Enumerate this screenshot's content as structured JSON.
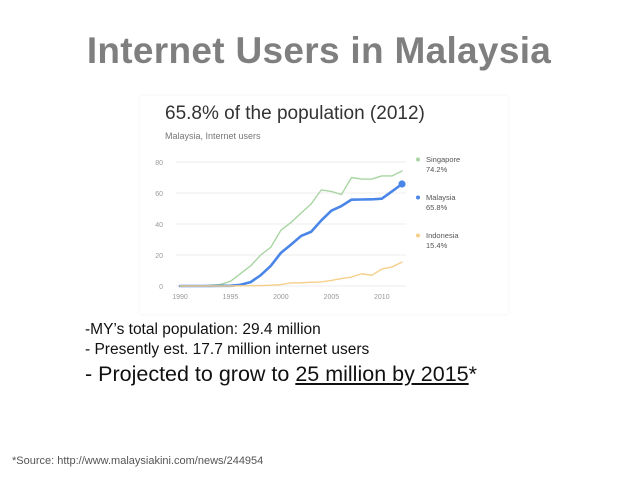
{
  "slide": {
    "title": "Internet Users in Malaysia",
    "bullets": [
      "-MY’s total population: 29.4 million",
      "-  Presently est. 17.7 million internet users"
    ],
    "projection": {
      "prefix": "- Projected to grow to ",
      "highlight": "25 million by 2015",
      "suffix": "*"
    },
    "source": "*Source: http://www.malaysiakini.com/news/244954"
  },
  "chart_data": {
    "type": "line",
    "title": "65.8% of the population (2012)",
    "subtitle": "Malaysia, Internet users",
    "xlim": [
      1990,
      2012
    ],
    "ylim": [
      0,
      80
    ],
    "x_ticks": [
      1990,
      1995,
      2000,
      2005,
      2010
    ],
    "y_ticks": [
      0,
      20,
      40,
      60,
      80
    ],
    "grid": true,
    "legend_position": "right",
    "x": [
      1990,
      1991,
      1992,
      1993,
      1994,
      1995,
      1996,
      1997,
      1998,
      1999,
      2000,
      2001,
      2002,
      2003,
      2004,
      2005,
      2006,
      2007,
      2008,
      2009,
      2010,
      2011,
      2012
    ],
    "series": [
      {
        "name": "Singapore",
        "legend_value": "74.2%",
        "color": "#a8d5a2",
        "values": [
          0,
          0,
          0,
          0.5,
          1,
          3,
          8,
          13,
          20,
          25,
          36,
          41,
          47,
          53,
          62,
          61,
          59,
          70,
          69,
          69,
          71,
          71,
          74.2
        ]
      },
      {
        "name": "Malaysia",
        "legend_value": "65.8%",
        "color": "#4a86e8",
        "values": [
          0,
          0,
          0,
          0,
          0.1,
          0.1,
          0.8,
          2.5,
          7,
          13,
          21.4,
          26.7,
          32.3,
          35,
          42.3,
          48.6,
          51.6,
          55.7,
          55.8,
          55.9,
          56.3,
          61,
          65.8
        ]
      },
      {
        "name": "Indonesia",
        "legend_value": "15.4%",
        "color": "#f5d08a",
        "values": [
          0,
          0,
          0,
          0,
          0,
          0,
          0.1,
          0.2,
          0.3,
          0.5,
          0.9,
          2,
          2.1,
          2.4,
          2.6,
          3.6,
          4.8,
          5.8,
          7.9,
          6.9,
          10.9,
          12.3,
          15.4
        ]
      }
    ]
  }
}
